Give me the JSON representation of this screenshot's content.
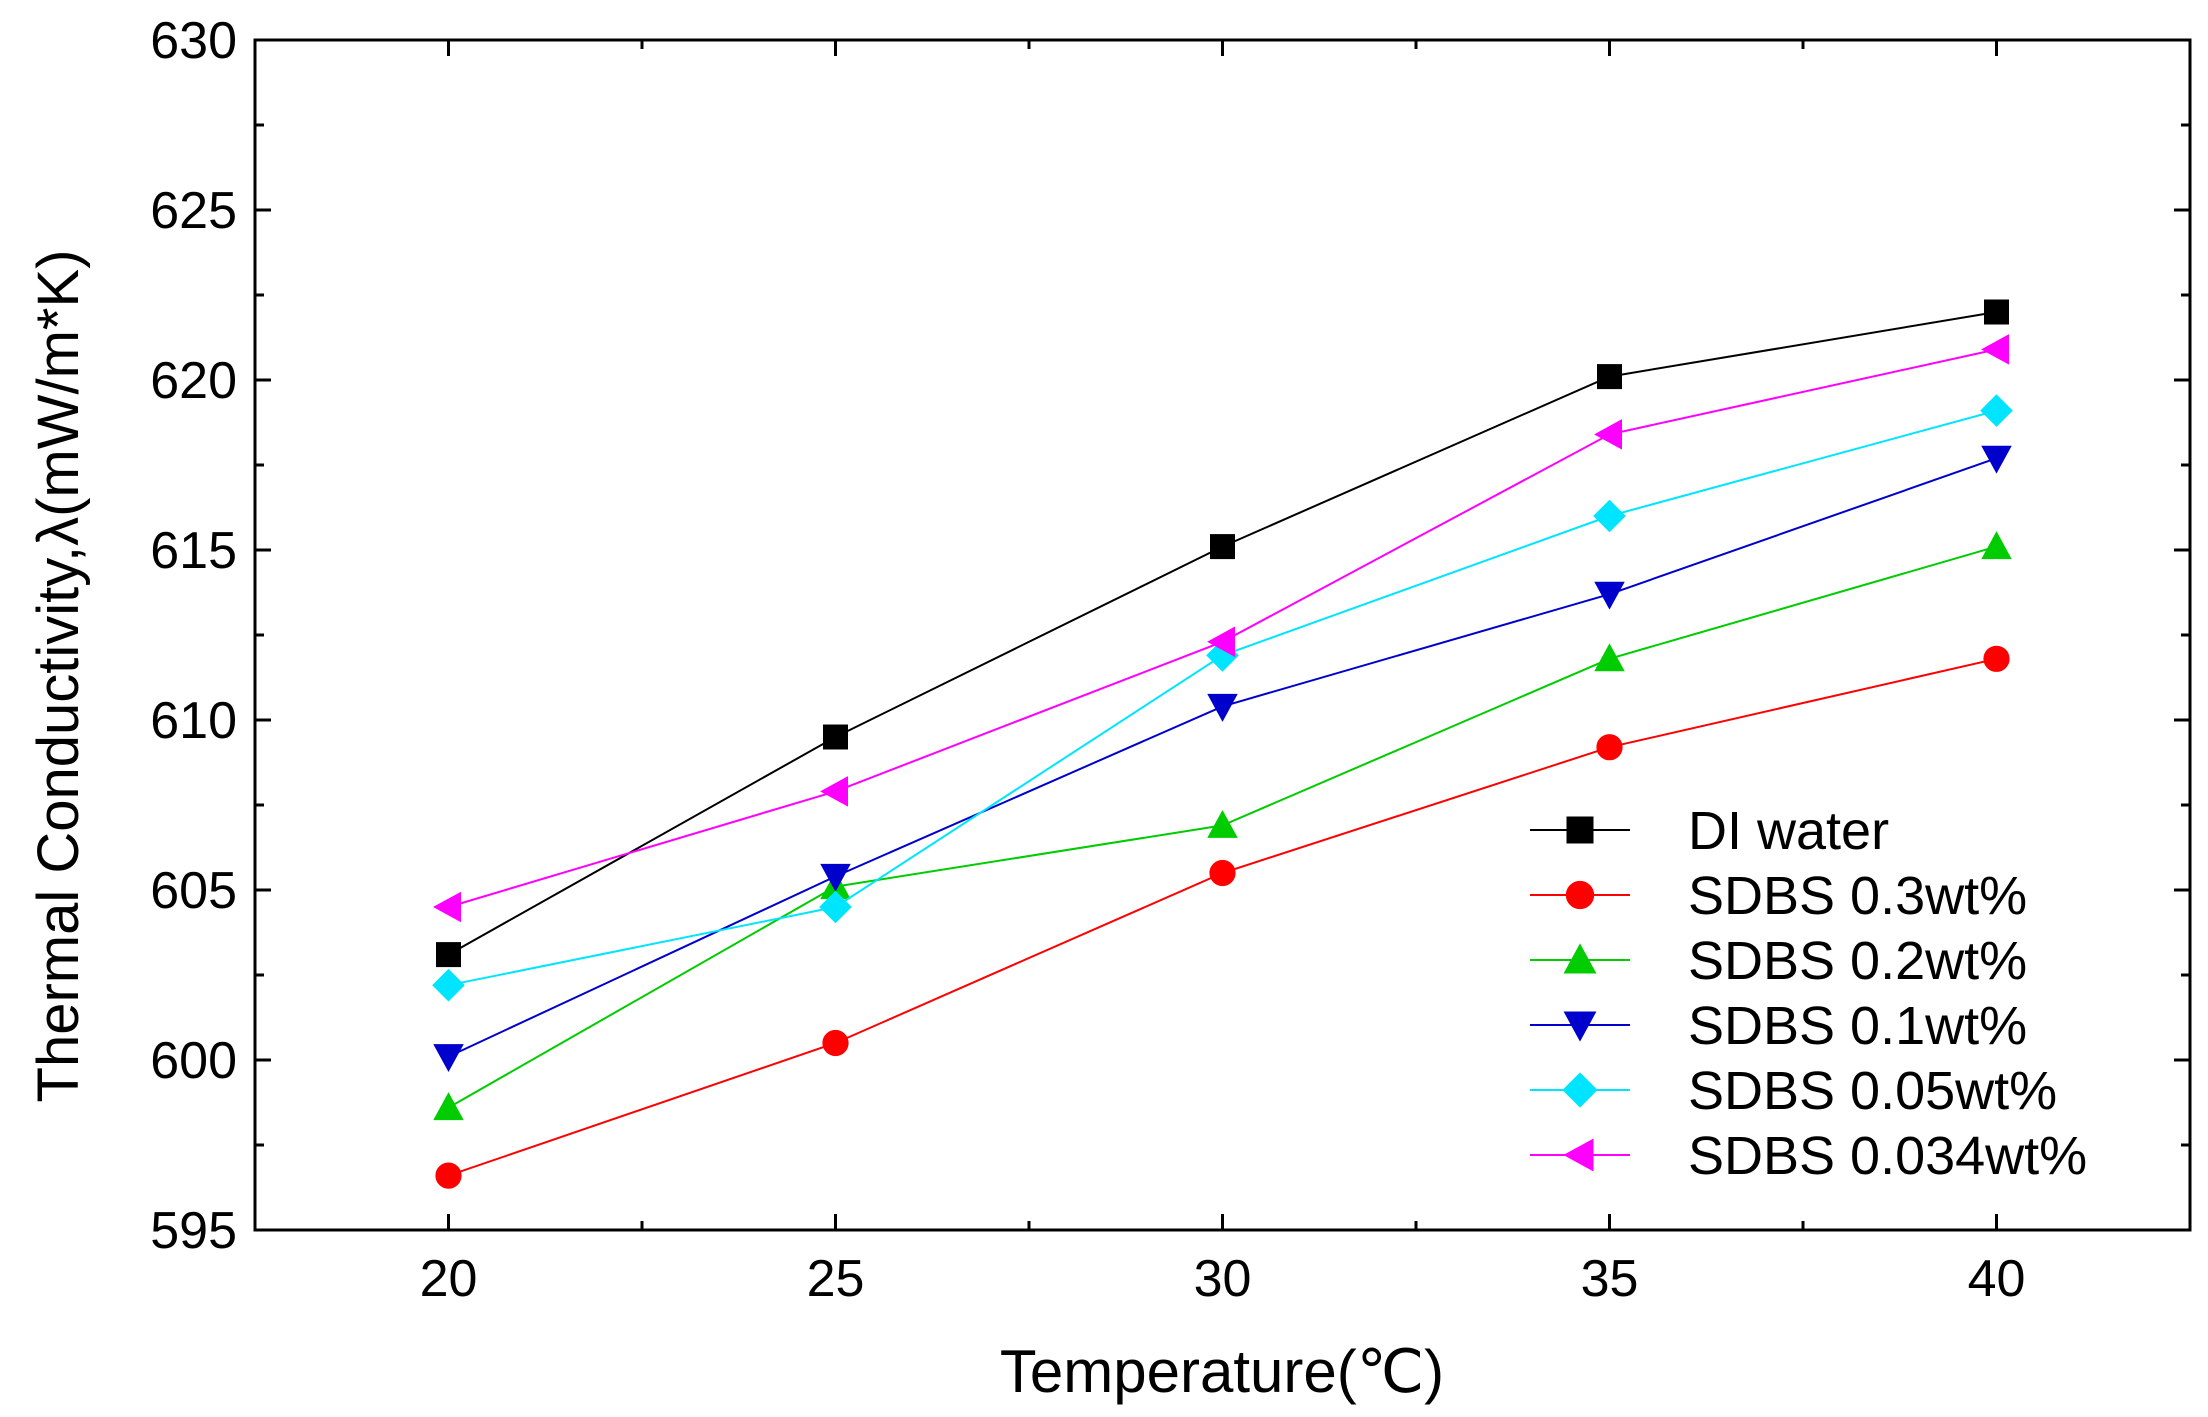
{
  "chart_data": {
    "type": "line",
    "title": "",
    "xlabel": "Temperature(℃)",
    "ylabel": "Thermal Conductivity,λ(mW/m*K)",
    "x": [
      20,
      25,
      30,
      35,
      40
    ],
    "xlim": [
      17.5,
      42.5
    ],
    "ylim": [
      595,
      630
    ],
    "xticks": [
      "20",
      "25",
      "30",
      "35",
      "40"
    ],
    "yticks": [
      "595",
      "600",
      "605",
      "610",
      "615",
      "620",
      "625",
      "630"
    ],
    "grid": false,
    "legend_position": "bottom-right",
    "series": [
      {
        "name": "DI water",
        "color": "#000000",
        "marker": "square",
        "values": [
          603.1,
          609.5,
          615.1,
          620.1,
          622.0
        ]
      },
      {
        "name": "SDBS 0.3wt%",
        "color": "#ff0000",
        "marker": "circle",
        "values": [
          596.6,
          600.5,
          605.5,
          609.2,
          611.8
        ]
      },
      {
        "name": "SDBS 0.2wt%",
        "color": "#00cc00",
        "marker": "triangle-up",
        "values": [
          598.6,
          605.1,
          606.9,
          611.8,
          615.1
        ]
      },
      {
        "name": "SDBS 0.1wt%",
        "color": "#0000cc",
        "marker": "triangle-down",
        "values": [
          600.1,
          605.4,
          610.4,
          613.7,
          617.7
        ]
      },
      {
        "name": "SDBS 0.05wt%",
        "color": "#00e5ff",
        "marker": "diamond",
        "values": [
          602.2,
          604.5,
          611.9,
          616.0,
          619.1
        ]
      },
      {
        "name": "SDBS 0.034wt%",
        "color": "#ff00ff",
        "marker": "triangle-left",
        "values": [
          604.5,
          607.9,
          612.3,
          618.4,
          620.9
        ]
      }
    ]
  }
}
